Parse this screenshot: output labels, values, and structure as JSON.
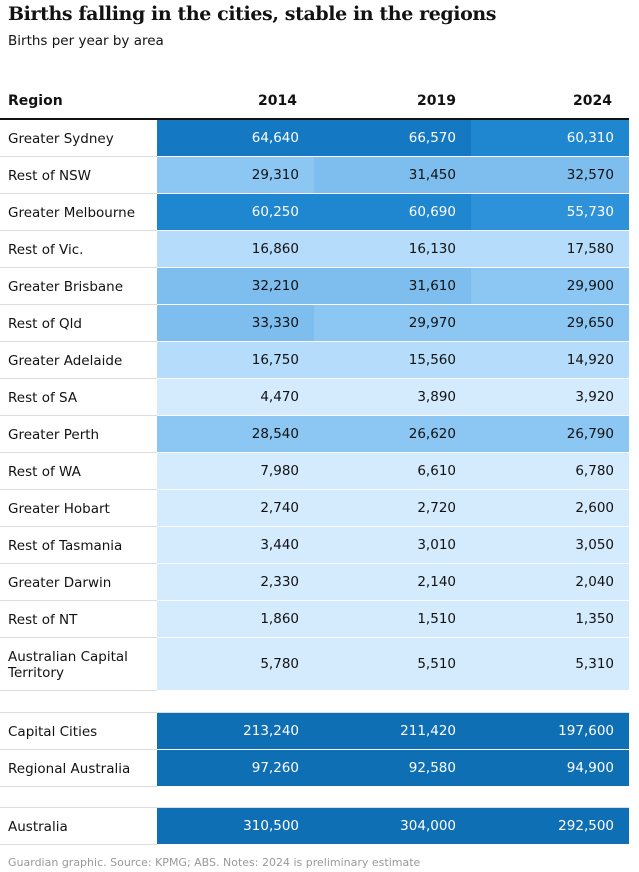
{
  "title": "Births falling in the cities, stable in the regions",
  "subtitle": "Births per year by area",
  "footer": "Guardian graphic. Source: KPMG; ABS. Notes: 2024 is preliminary estimate",
  "header": {
    "region": "Region",
    "years": [
      "2014",
      "2019",
      "2024"
    ]
  },
  "chart_data": {
    "type": "table",
    "title": "Births falling in the cities, stable in the regions",
    "subtitle": "Births per year by area",
    "columns": [
      "Region",
      "2014",
      "2019",
      "2024"
    ],
    "groups": [
      {
        "rows": [
          {
            "region": "Greater Sydney",
            "values": [
              64640,
              66570,
              60310
            ],
            "labels": [
              "64,640",
              "66,570",
              "60,310"
            ]
          },
          {
            "region": "Rest of NSW",
            "values": [
              29310,
              31450,
              32570
            ],
            "labels": [
              "29,310",
              "31,450",
              "32,570"
            ]
          },
          {
            "region": "Greater Melbourne",
            "values": [
              60250,
              60690,
              55730
            ],
            "labels": [
              "60,250",
              "60,690",
              "55,730"
            ]
          },
          {
            "region": "Rest of Vic.",
            "values": [
              16860,
              16130,
              17580
            ],
            "labels": [
              "16,860",
              "16,130",
              "17,580"
            ]
          },
          {
            "region": "Greater Brisbane",
            "values": [
              32210,
              31610,
              29900
            ],
            "labels": [
              "32,210",
              "31,610",
              "29,900"
            ]
          },
          {
            "region": "Rest of Qld",
            "values": [
              33330,
              29970,
              29650
            ],
            "labels": [
              "33,330",
              "29,970",
              "29,650"
            ]
          },
          {
            "region": "Greater Adelaide",
            "values": [
              16750,
              15560,
              14920
            ],
            "labels": [
              "16,750",
              "15,560",
              "14,920"
            ]
          },
          {
            "region": "Rest of SA",
            "values": [
              4470,
              3890,
              3920
            ],
            "labels": [
              "4,470",
              "3,890",
              "3,920"
            ]
          },
          {
            "region": "Greater Perth",
            "values": [
              28540,
              26620,
              26790
            ],
            "labels": [
              "28,540",
              "26,620",
              "26,790"
            ]
          },
          {
            "region": "Rest of WA",
            "values": [
              7980,
              6610,
              6780
            ],
            "labels": [
              "7,980",
              "6,610",
              "6,780"
            ]
          },
          {
            "region": "Greater Hobart",
            "values": [
              2740,
              2720,
              2600
            ],
            "labels": [
              "2,740",
              "2,720",
              "2,600"
            ]
          },
          {
            "region": "Rest of Tasmania",
            "values": [
              3440,
              3010,
              3050
            ],
            "labels": [
              "3,440",
              "3,010",
              "3,050"
            ]
          },
          {
            "region": "Greater Darwin",
            "values": [
              2330,
              2140,
              2040
            ],
            "labels": [
              "2,330",
              "2,140",
              "2,040"
            ]
          },
          {
            "region": "Rest of NT",
            "values": [
              1860,
              1510,
              1350
            ],
            "labels": [
              "1,860",
              "1,510",
              "1,350"
            ]
          },
          {
            "region": "Australian Capital Territory",
            "values": [
              5780,
              5510,
              5310
            ],
            "labels": [
              "5,780",
              "5,510",
              "5,310"
            ]
          }
        ]
      },
      {
        "rows": [
          {
            "region": "Capital Cities",
            "values": [
              213240,
              211420,
              197600
            ],
            "labels": [
              "213,240",
              "211,420",
              "197,600"
            ]
          },
          {
            "region": "Regional Australia",
            "values": [
              97260,
              92580,
              94900
            ],
            "labels": [
              "97,260",
              "92,580",
              "94,900"
            ]
          }
        ]
      },
      {
        "rows": [
          {
            "region": "Australia",
            "values": [
              310500,
              304000,
              292500
            ],
            "labels": [
              "310,500",
              "304,000",
              "292,500"
            ]
          }
        ]
      }
    ],
    "colors": {
      "scale": [
        "#d4ebfd",
        "#b5dcfa",
        "#98cdf5",
        "#7dbeef",
        "#5ea9e4",
        "#3a92d8",
        "#1f80c8",
        "#0f6fb4"
      ],
      "text_dark": "#121212",
      "text_light": "#ffffff"
    }
  }
}
